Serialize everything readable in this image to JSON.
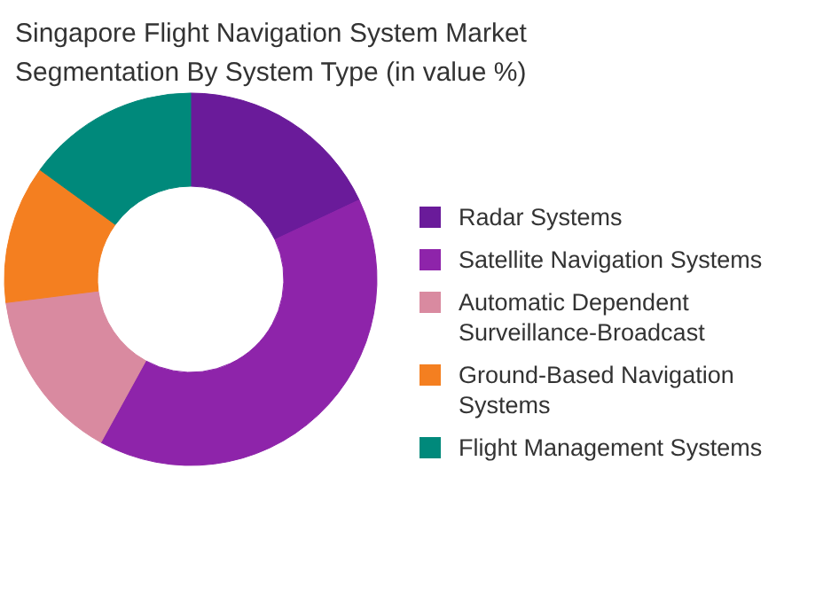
{
  "chart_data": {
    "type": "donut",
    "title": "Singapore Flight Navigation System Market Segmentation By System Type (in value %)",
    "categories": [
      "Radar Systems",
      "Satellite Navigation Systems",
      "Automatic Dependent Surveillance-Broadcast",
      "Ground-Based Navigation Systems",
      "Flight Management Systems"
    ],
    "values": [
      18,
      40,
      15,
      12,
      15
    ],
    "colors": [
      "#6a1b9a",
      "#8e24aa",
      "#d98aa0",
      "#f47f20",
      "#00897b"
    ],
    "legend": "right"
  }
}
